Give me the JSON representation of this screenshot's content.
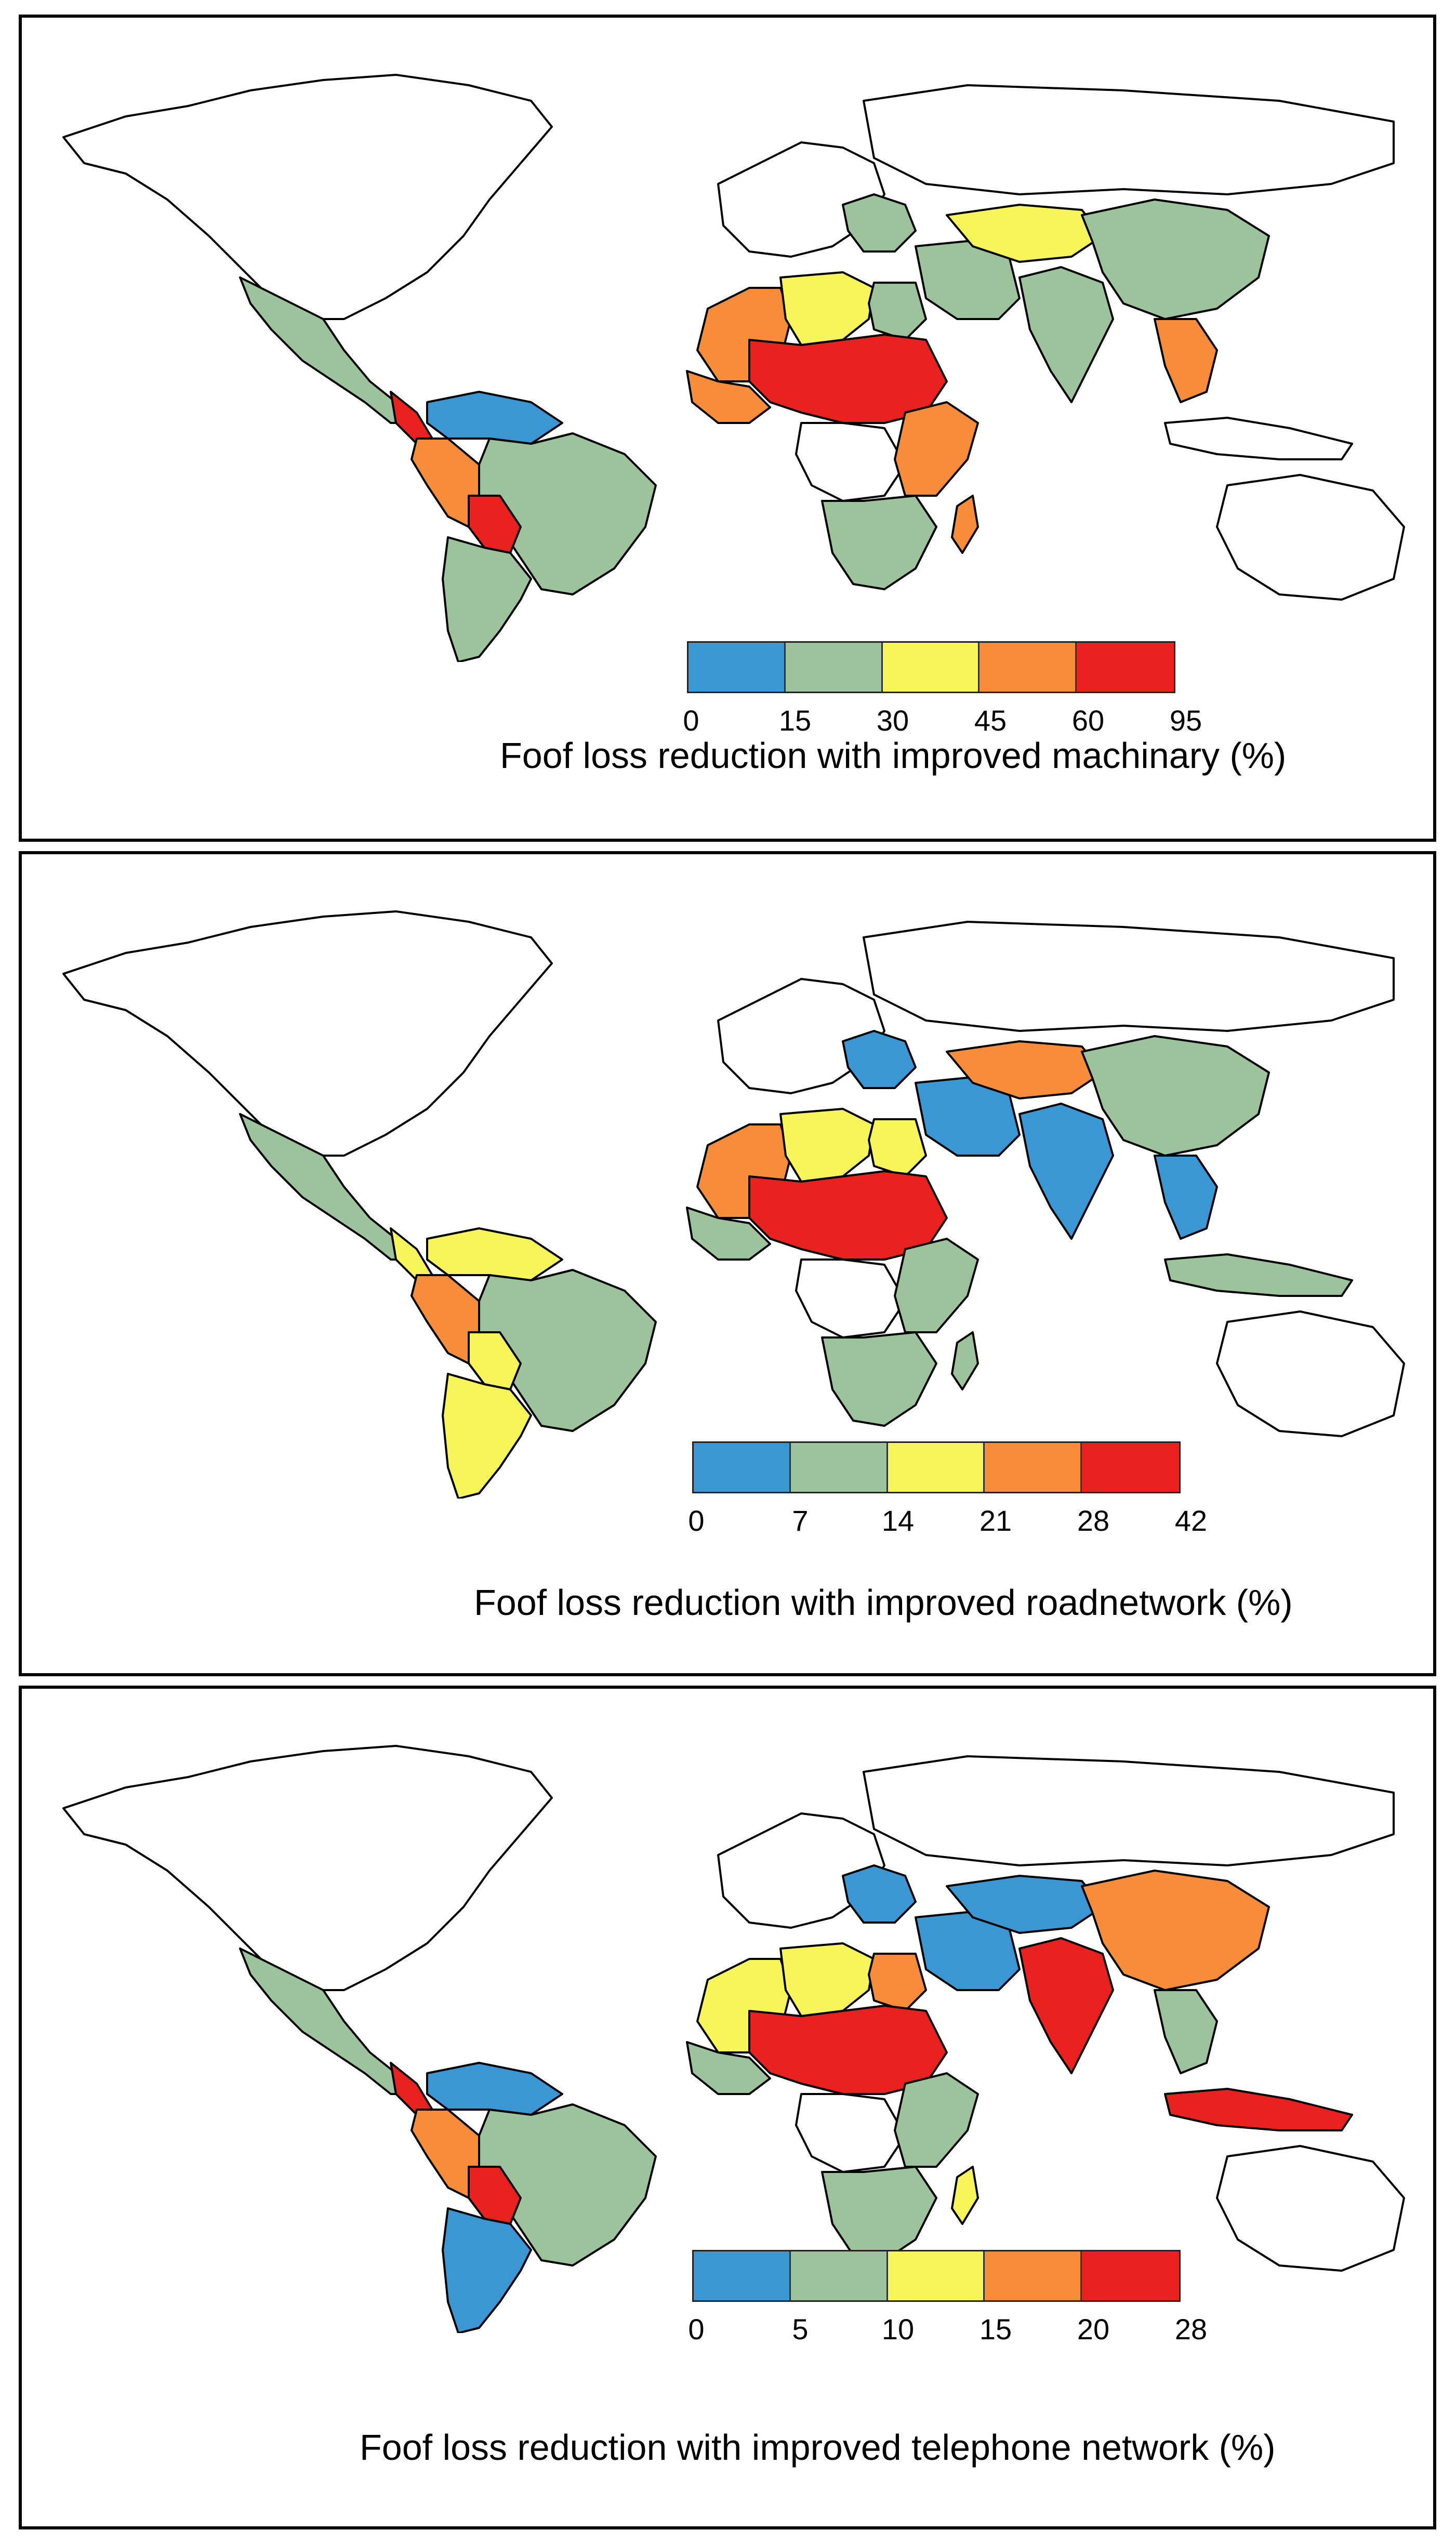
{
  "palette": {
    "blue": "#3b97d3",
    "green": "#9dc39c",
    "yellow": "#f8f55a",
    "orange": "#f78d3a",
    "red": "#e9211f",
    "nodata": "#ffffff"
  },
  "panels": [
    {
      "caption": "Foof loss reduction with improved machinary (%)",
      "breaks": [
        "0",
        "15",
        "30",
        "45",
        "60",
        "95"
      ],
      "classes": {
        "north_america": "nodata",
        "mexico_central": "green",
        "central_small": "red",
        "south_north": "blue",
        "brazil": "green",
        "peru_west": "orange",
        "bolivia": "red",
        "southern_cone": "green",
        "europe": "nodata",
        "europe_east": "green",
        "north_africa_west": "orange",
        "north_africa_mid": "yellow",
        "egypt": "green",
        "sahel": "red",
        "west_africa_coast": "orange",
        "central_africa": "nodata",
        "east_africa": "orange",
        "southern_africa": "green",
        "madagascar": "orange",
        "middle_east": "green",
        "central_asia": "yellow",
        "russia": "nodata",
        "south_asia": "green",
        "china": "green",
        "southeast_asia": "orange",
        "indonesia": "nodata",
        "australia": "nodata"
      }
    },
    {
      "caption": "Foof loss reduction with improved roadnetwork (%)",
      "breaks": [
        "0",
        "7",
        "14",
        "21",
        "28",
        "42"
      ],
      "classes": {
        "north_america": "nodata",
        "mexico_central": "green",
        "central_small": "yellow",
        "south_north": "yellow",
        "brazil": "green",
        "peru_west": "orange",
        "bolivia": "yellow",
        "southern_cone": "yellow",
        "europe": "nodata",
        "europe_east": "blue",
        "north_africa_west": "orange",
        "north_africa_mid": "yellow",
        "egypt": "yellow",
        "sahel": "red",
        "west_africa_coast": "green",
        "central_africa": "nodata",
        "east_africa": "green",
        "southern_africa": "green",
        "madagascar": "green",
        "middle_east": "blue",
        "central_asia": "orange",
        "russia": "nodata",
        "south_asia": "blue",
        "china": "green",
        "southeast_asia": "blue",
        "indonesia": "green",
        "australia": "nodata"
      }
    },
    {
      "caption": "Foof loss reduction with improved telephone network (%)",
      "breaks": [
        "0",
        "5",
        "10",
        "15",
        "20",
        "28"
      ],
      "classes": {
        "north_america": "nodata",
        "mexico_central": "green",
        "central_small": "red",
        "south_north": "blue",
        "brazil": "green",
        "peru_west": "orange",
        "bolivia": "red",
        "southern_cone": "blue",
        "europe": "nodata",
        "europe_east": "blue",
        "north_africa_west": "yellow",
        "north_africa_mid": "yellow",
        "egypt": "orange",
        "sahel": "red",
        "west_africa_coast": "green",
        "central_africa": "nodata",
        "east_africa": "green",
        "southern_africa": "green",
        "madagascar": "yellow",
        "middle_east": "blue",
        "central_asia": "blue",
        "russia": "nodata",
        "south_asia": "red",
        "china": "orange",
        "southeast_asia": "green",
        "indonesia": "red",
        "australia": "nodata"
      }
    }
  ]
}
